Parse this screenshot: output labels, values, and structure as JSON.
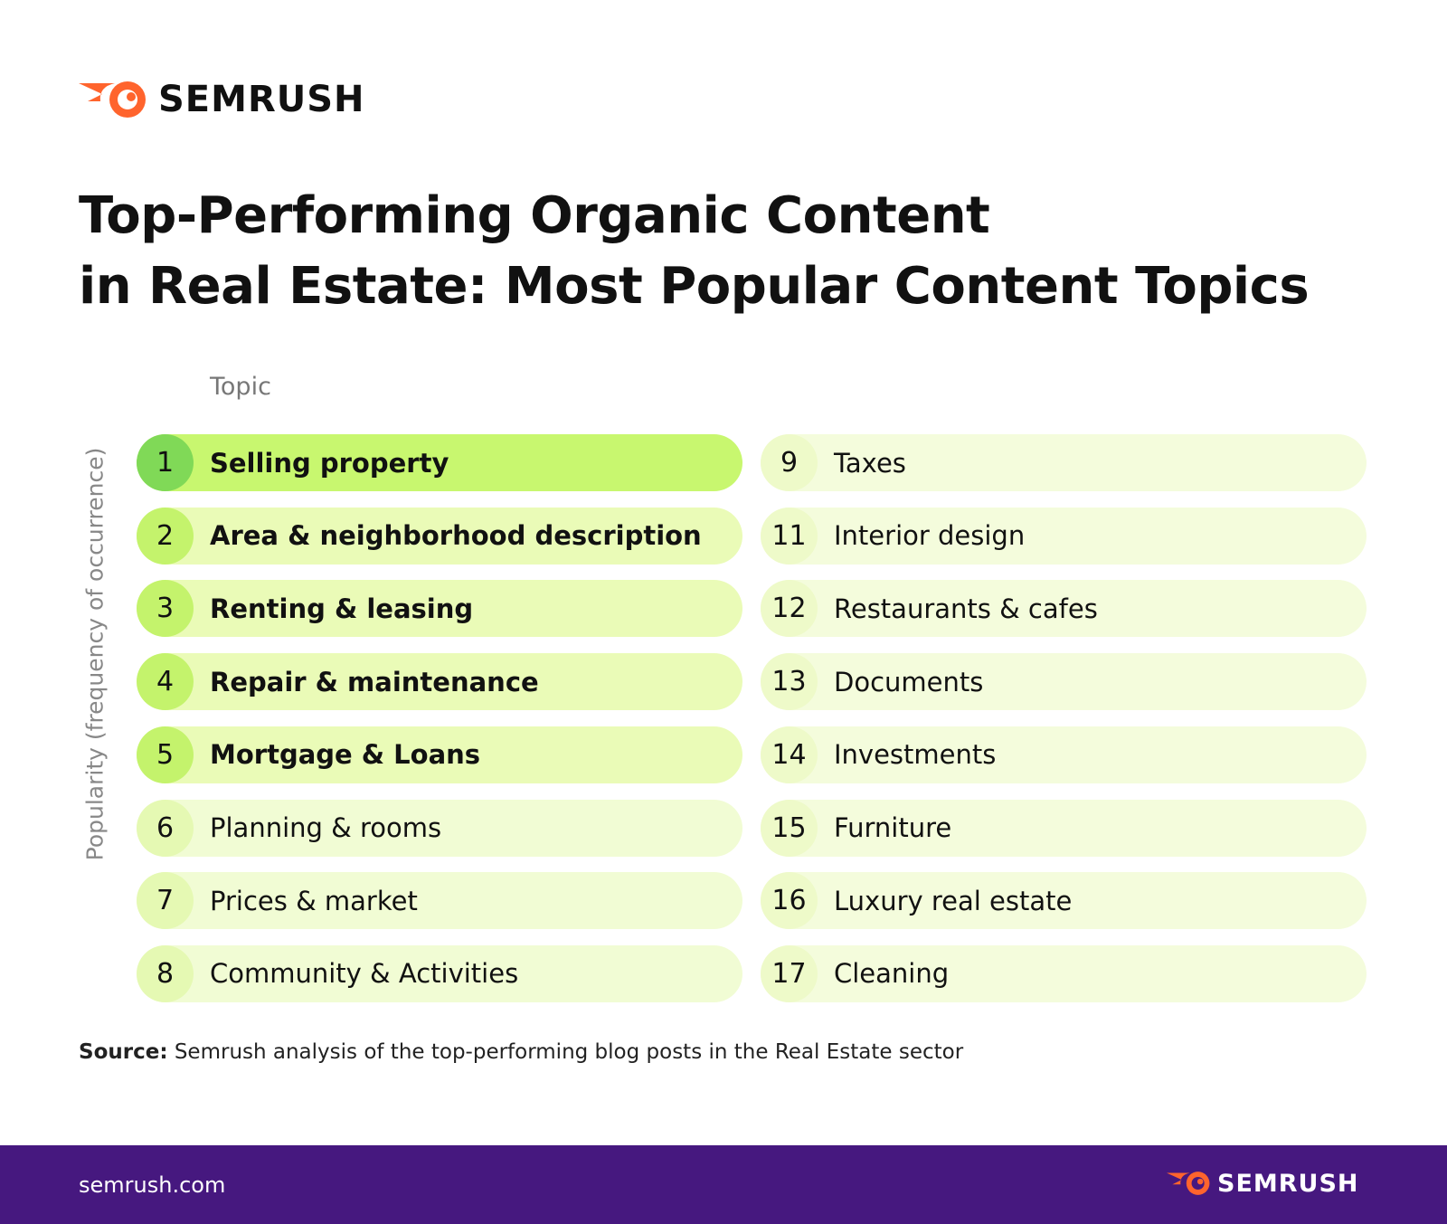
{
  "header": {
    "brand": "SEMRUSH",
    "title_lines": [
      "Top-Performing Organic Content",
      "in Real Estate: Most Popular Content Topics"
    ]
  },
  "column_header": "Topic",
  "axis_label": "Popularity (frequency of occurrence)",
  "items": [
    {
      "rank": "1",
      "label": "Selling property",
      "color": "#c8f76f",
      "badge_color": "#80d957",
      "bold": true
    },
    {
      "rank": "2",
      "label": "Area & neighborhood description",
      "color": "#eafbb7",
      "badge_color": "#c4f36c",
      "bold": true
    },
    {
      "rank": "3",
      "label": "Renting & leasing",
      "color": "#eafbb7",
      "badge_color": "#c4f36c",
      "bold": true
    },
    {
      "rank": "4",
      "label": "Repair & maintenance",
      "color": "#eafbb7",
      "badge_color": "#c4f36c",
      "bold": true
    },
    {
      "rank": "5",
      "label": "Mortgage & Loans",
      "color": "#eafbb7",
      "badge_color": "#c4f36c",
      "bold": true
    },
    {
      "rank": "6",
      "label": "Planning & rooms",
      "color": "#f1fcd4",
      "badge_color": "#e5f9b3",
      "bold": false
    },
    {
      "rank": "7",
      "label": "Prices & market",
      "color": "#f1fcd4",
      "badge_color": "#e5f9b3",
      "bold": false
    },
    {
      "rank": "8",
      "label": "Community & Activities",
      "color": "#f1fcd4",
      "badge_color": "#e5f9b3",
      "bold": false
    },
    {
      "rank": "9",
      "label": "Taxes",
      "color": "#f4fcdc",
      "badge_color": "#eefac9",
      "bold": false
    },
    {
      "rank": "11",
      "label": "Interior design",
      "color": "#f4fcdc",
      "badge_color": "#eefac9",
      "bold": false
    },
    {
      "rank": "12",
      "label": "Restaurants & cafes",
      "color": "#f4fcdc",
      "badge_color": "#eefac9",
      "bold": false
    },
    {
      "rank": "13",
      "label": "Documents",
      "color": "#f4fcdc",
      "badge_color": "#eefac9",
      "bold": false
    },
    {
      "rank": "14",
      "label": "Investments",
      "color": "#f4fcdc",
      "badge_color": "#eefac9",
      "bold": false
    },
    {
      "rank": "15",
      "label": "Furniture",
      "color": "#f4fcdc",
      "badge_color": "#eefac9",
      "bold": false
    },
    {
      "rank": "16",
      "label": "Luxury real estate",
      "color": "#f4fcdc",
      "badge_color": "#eefac9",
      "bold": false
    },
    {
      "rank": "17",
      "label": "Cleaning",
      "color": "#f4fcdc",
      "badge_color": "#eefac9",
      "bold": false
    }
  ],
  "source": {
    "label": "Source:",
    "text": "Semrush analysis of the top-performing blog posts in the Real Estate sector"
  },
  "footer": {
    "url": "semrush.com",
    "brand": "SEMRUSH"
  }
}
